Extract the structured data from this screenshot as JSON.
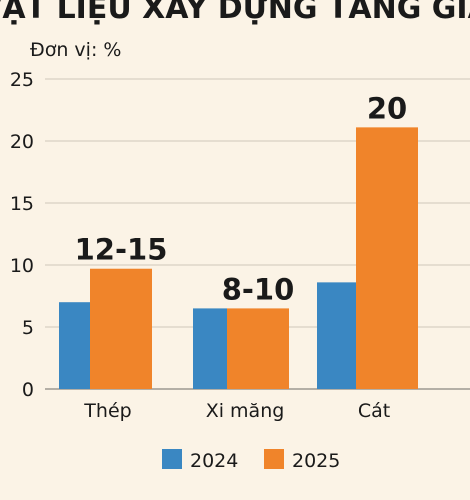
{
  "chart_data": {
    "type": "bar",
    "title": "VẬT LIỆU XÂY DỰNG TĂNG GIÁ",
    "unit_label": "Đơn vị: %",
    "categories": [
      "Thép",
      "Xi măng",
      "Cát"
    ],
    "series": [
      {
        "name": "2024",
        "color": "#3a87c2",
        "values": [
          7,
          6.5,
          8.6
        ]
      },
      {
        "name": "2025",
        "color": "#f0842a",
        "values": [
          9.7,
          6.5,
          21.1
        ]
      }
    ],
    "data_labels": [
      "12-15",
      "8-10",
      "20"
    ],
    "yticks": [
      0,
      5,
      10,
      15,
      20,
      25
    ],
    "ylim": [
      0,
      25
    ],
    "grid": true,
    "legend": "bottom"
  }
}
